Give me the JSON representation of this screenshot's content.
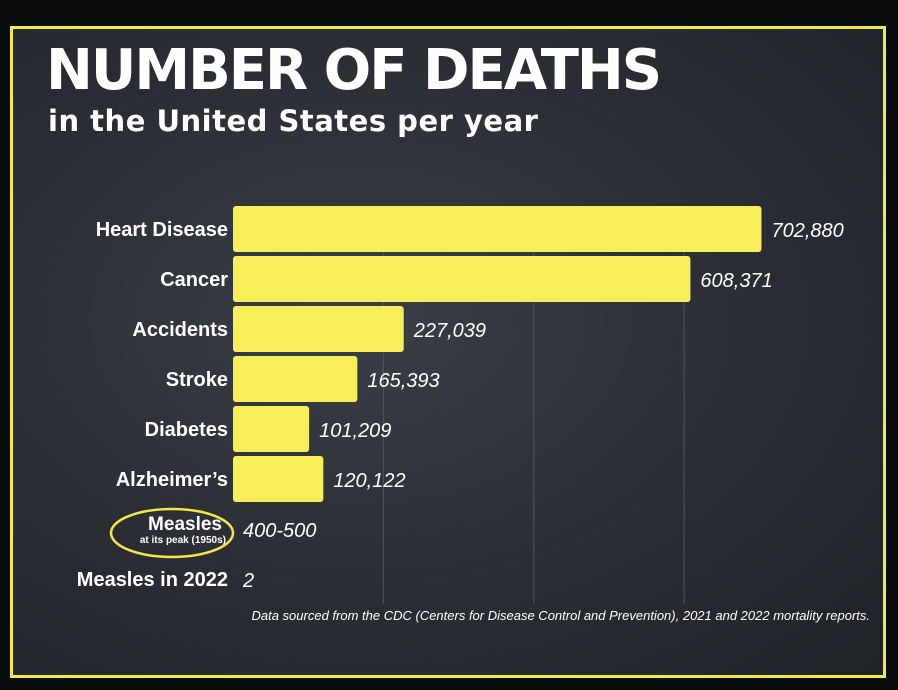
{
  "title": "NUMBER OF DEATHS",
  "subtitle": "in the United States per year",
  "source_note": "Data sourced from the CDC (Centers for Disease Control and Prevention), 2021 and 2022 mortality reports.",
  "colors": {
    "bar": "#f7ee5a",
    "frame": "#f2e84a",
    "background": "#2f3238",
    "text": "#ffffff",
    "gridline": "#50545b",
    "highlight_circle": "#f2e84a"
  },
  "chart_data": {
    "type": "bar",
    "orientation": "horizontal",
    "categories": [
      "Heart Disease",
      "Cancer",
      "Accidents",
      "Stroke",
      "Diabetes",
      "Alzheimer’s",
      "Measles",
      "Measles in 2022"
    ],
    "category_notes": [
      "",
      "",
      "",
      "",
      "",
      "",
      "at its peak (1950s)",
      ""
    ],
    "highlighted_category": "Measles",
    "values": [
      702880,
      608371,
      227039,
      165393,
      101209,
      120122,
      450,
      2
    ],
    "value_labels": [
      "702,880",
      "608,371",
      "227,039",
      "165,393",
      "101,209",
      "120,122",
      "400-500",
      "2"
    ],
    "xlim": [
      0,
      800000
    ],
    "grid": true,
    "legend": "none"
  }
}
